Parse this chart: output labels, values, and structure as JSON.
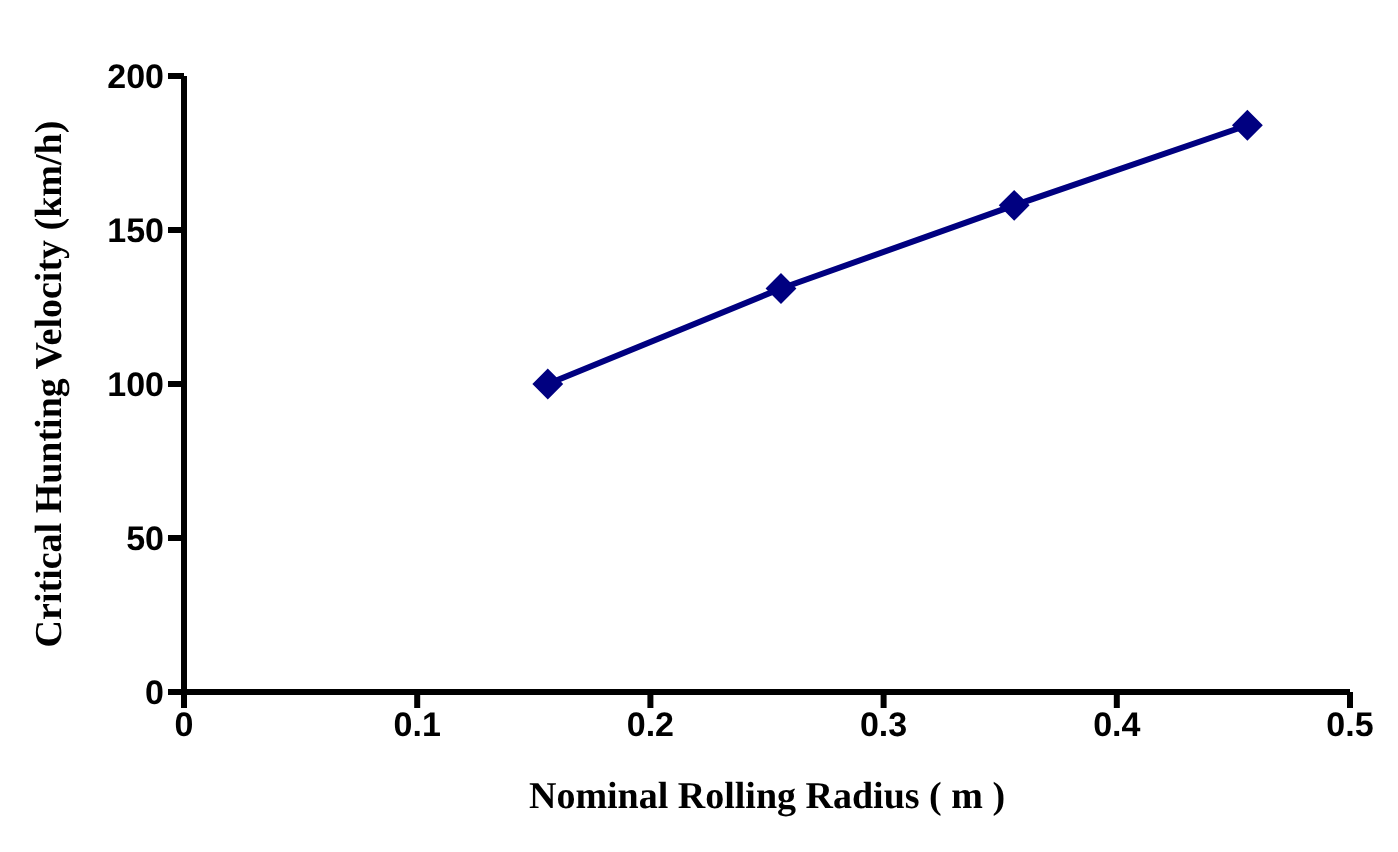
{
  "chart_data": {
    "type": "line",
    "xlabel": "Nominal Rolling Radius ( m )",
    "ylabel": "Critical Hunting Velocity (km/h)",
    "x": [
      0.156,
      0.256,
      0.356,
      0.456
    ],
    "series": [
      {
        "color": "#000080",
        "values": [
          100,
          131,
          158,
          184
        ]
      }
    ],
    "xlim": [
      0,
      0.5
    ],
    "xticks": [
      0,
      0.1,
      0.2,
      0.3,
      0.4,
      0.5
    ],
    "ylim": [
      0,
      200
    ],
    "yticks": [
      0,
      50,
      100,
      150,
      200
    ],
    "grid": false,
    "legend": false,
    "marker": "diamond",
    "line_style": "solid"
  }
}
